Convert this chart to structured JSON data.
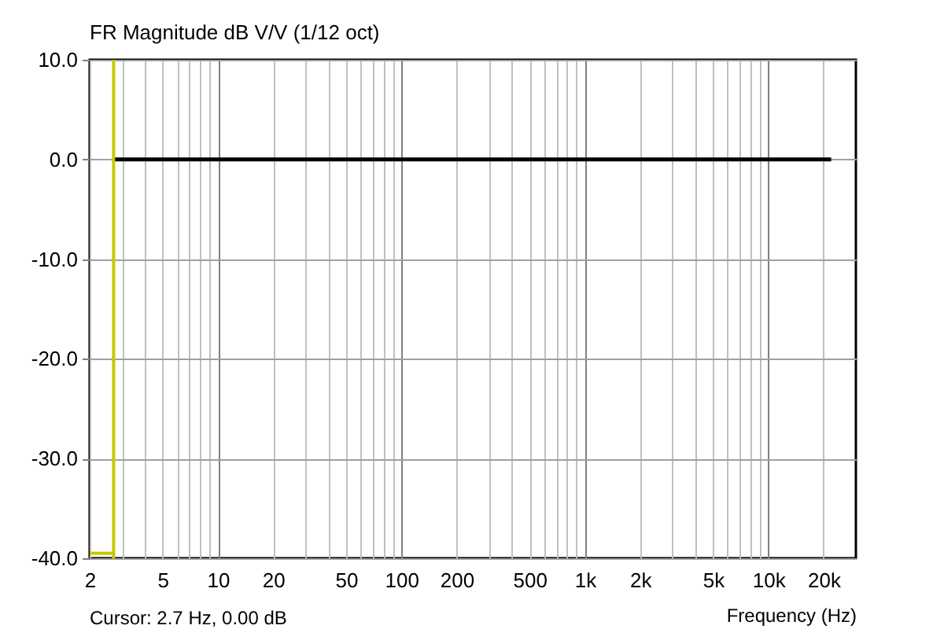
{
  "chart_data": {
    "type": "line",
    "title": "FR Magnitude dB V/V (1/12 oct)",
    "xlabel": "Frequency (Hz)",
    "log": "x",
    "grid": true,
    "xlim": [
      2,
      30000
    ],
    "ylim": [
      -40,
      10
    ],
    "xticks": [
      2,
      {
        "value": 3,
        "label": null
      },
      {
        "value": 4,
        "label": null
      },
      5,
      {
        "value": 6,
        "label": null
      },
      {
        "value": 7,
        "label": null
      },
      {
        "value": 8,
        "label": null
      },
      {
        "value": 9,
        "label": null
      },
      10,
      20,
      {
        "value": 30,
        "label": null
      },
      {
        "value": 40,
        "label": null
      },
      50,
      {
        "value": 60,
        "label": null
      },
      {
        "value": 70,
        "label": null
      },
      {
        "value": 80,
        "label": null
      },
      {
        "value": 90,
        "label": null
      },
      100,
      200,
      {
        "value": 300,
        "label": null
      },
      {
        "value": 400,
        "label": null
      },
      500,
      {
        "value": 600,
        "label": null
      },
      {
        "value": 700,
        "label": null
      },
      {
        "value": 800,
        "label": null
      },
      {
        "value": 900,
        "label": null
      },
      {
        "value": 1000,
        "label": "1k"
      },
      {
        "value": 2000,
        "label": "2k"
      },
      {
        "value": 3000,
        "label": null
      },
      {
        "value": 4000,
        "label": null
      },
      {
        "value": 5000,
        "label": "5k"
      },
      {
        "value": 6000,
        "label": null
      },
      {
        "value": 7000,
        "label": null
      },
      {
        "value": 8000,
        "label": null
      },
      {
        "value": 9000,
        "label": null
      },
      {
        "value": 10000,
        "label": "10k"
      },
      {
        "value": 20000,
        "label": "20k"
      }
    ],
    "yticks": [
      {
        "value": 10,
        "label": "10.0"
      },
      {
        "value": 0,
        "label": "0.0"
      },
      {
        "value": -10,
        "label": "-10.0"
      },
      {
        "value": -20,
        "label": "-20.0"
      },
      {
        "value": -30,
        "label": "-30.0"
      },
      {
        "value": -40,
        "label": "-40.0"
      }
    ],
    "series": [
      {
        "color": "#000000",
        "x": [
          2.7,
          22000
        ],
        "values": [
          0,
          0
        ]
      },
      {
        "color": "#c8c800",
        "x": [
          2,
          2.7
        ],
        "values": [
          -39.5,
          -39.5
        ]
      }
    ],
    "ref_lines": [
      {
        "axis": "x",
        "value": 2.7,
        "color": "#c8c800"
      }
    ],
    "annotations": [
      "Cursor: 2.7 Hz, 0.00 dB"
    ]
  }
}
